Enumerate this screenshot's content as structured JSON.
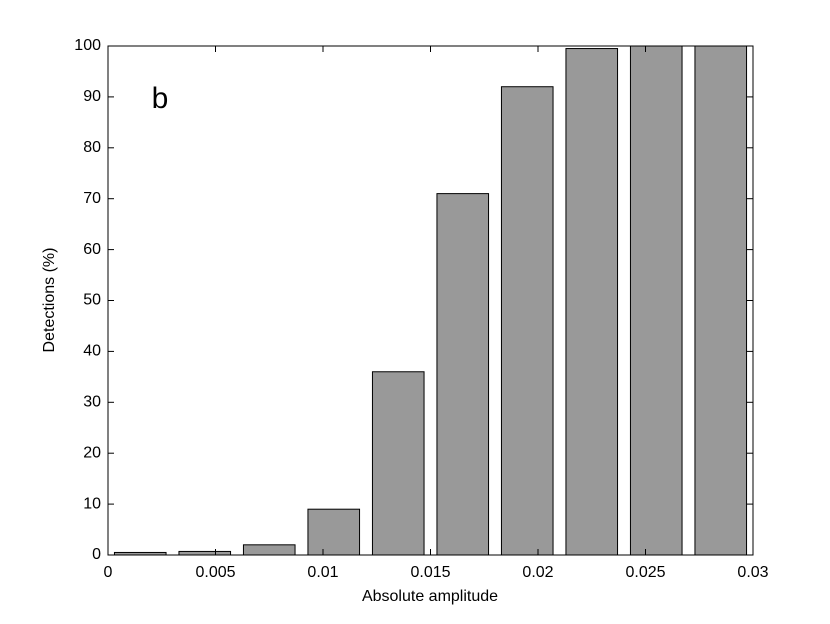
{
  "chart_data": {
    "type": "bar",
    "annotation": "b",
    "x_label": "Absolute amplitude",
    "y_label": "Detections (%)",
    "x": [
      0.0015,
      0.0045,
      0.0075,
      0.0105,
      0.0135,
      0.0165,
      0.0195,
      0.0225,
      0.0255,
      0.0285
    ],
    "values": [
      0.5,
      0.7,
      2,
      9,
      36,
      71,
      92,
      99.5,
      100,
      100
    ],
    "color": "#999999",
    "xlim": [
      0,
      0.03
    ],
    "xticks": [
      0,
      0.005,
      0.01,
      0.015,
      0.02,
      0.025,
      0.03
    ],
    "ylim": [
      0,
      100
    ],
    "yticks": [
      0,
      10,
      20,
      30,
      40,
      50,
      60,
      70,
      80,
      90,
      100
    ],
    "grid": false
  }
}
